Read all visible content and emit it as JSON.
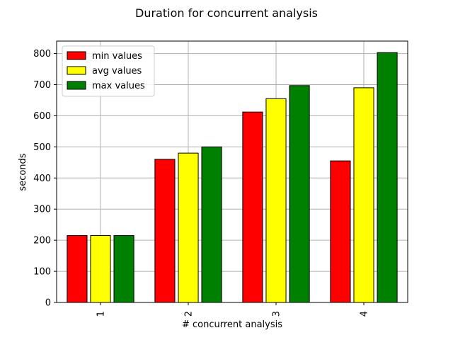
{
  "chart_data": {
    "type": "bar",
    "title": "Duration for concurrent analysis",
    "xlabel": "# concurrent analysis",
    "ylabel": "seconds",
    "categories": [
      "1",
      "2",
      "3",
      "4"
    ],
    "series": [
      {
        "name": "min values",
        "color": "#ff0000",
        "values": [
          215,
          460,
          612,
          455
        ]
      },
      {
        "name": "avg values",
        "color": "#ffff00",
        "values": [
          215,
          480,
          655,
          690
        ]
      },
      {
        "name": "max values",
        "color": "#008000",
        "values": [
          215,
          500,
          697,
          803
        ]
      }
    ],
    "ylim": [
      0,
      840
    ],
    "yticks": [
      0,
      100,
      200,
      300,
      400,
      500,
      600,
      700,
      800
    ],
    "grid": true,
    "legend_position": "top-left",
    "xtick_rotation": "vertical"
  }
}
